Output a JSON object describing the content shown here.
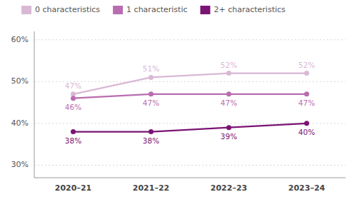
{
  "chart_data": {
    "type": "line",
    "categories": [
      "2020–21",
      "2021–22",
      "2022–23",
      "2023–24"
    ],
    "series": [
      {
        "name": "0 characteristics",
        "color": "#d9b8d5",
        "marker": "circle",
        "values": [
          47,
          51,
          52,
          52
        ],
        "value_labels": [
          "47%",
          "51%",
          "52%",
          "52%"
        ]
      },
      {
        "name": "1 characteristic",
        "color": "#b96db0",
        "marker": "circle",
        "values": [
          46,
          47,
          47,
          47
        ],
        "value_labels": [
          "46%",
          "47%",
          "47%",
          "47%"
        ]
      },
      {
        "name": "2+ characteristics",
        "color": "#7b1474",
        "marker": "circle",
        "values": [
          38,
          38,
          39,
          40
        ],
        "value_labels": [
          "38%",
          "38%",
          "39%",
          "40%"
        ]
      }
    ],
    "ylim": [
      27,
      62
    ],
    "yticks": [
      {
        "value": 30,
        "label": "30%"
      },
      {
        "value": 40,
        "label": "40%"
      },
      {
        "value": 50,
        "label": "50%"
      },
      {
        "value": 60,
        "label": "60%"
      }
    ],
    "grid": true,
    "legend": "top",
    "data_labels": true
  }
}
